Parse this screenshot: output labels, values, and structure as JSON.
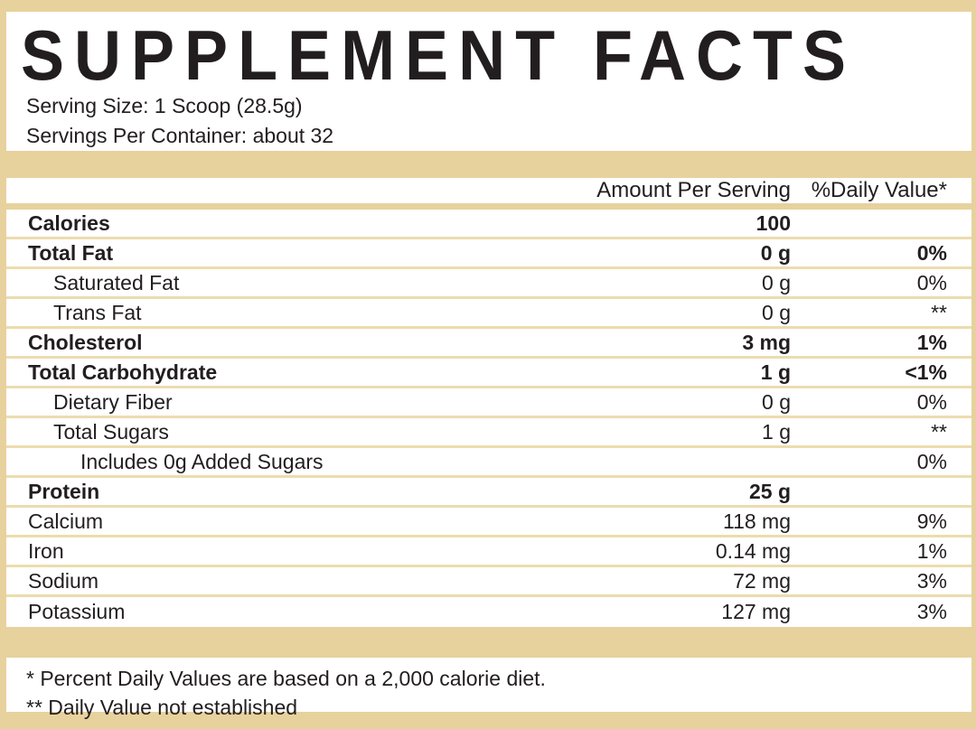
{
  "label": {
    "title": "SUPPLEMENT FACTS",
    "serving_size": "Serving Size: 1 Scoop (28.5g)",
    "servings_per_container": "Servings Per Container: about 32"
  },
  "table": {
    "header": {
      "amount": "Amount Per Serving",
      "daily_value": "%Daily Value*"
    },
    "rows": [
      {
        "label": "Calories",
        "amount": "100",
        "daily_value": "",
        "bold": true,
        "indent": 0
      },
      {
        "label": "Total Fat",
        "amount": "0 g",
        "daily_value": "0%",
        "bold": true,
        "indent": 0
      },
      {
        "label": "Saturated Fat",
        "amount": "0 g",
        "daily_value": "0%",
        "bold": false,
        "indent": 1
      },
      {
        "label": "Trans Fat",
        "amount": "0 g",
        "daily_value": "**",
        "bold": false,
        "indent": 1
      },
      {
        "label": "Cholesterol",
        "amount": "3 mg",
        "daily_value": "1%",
        "bold": true,
        "indent": 0
      },
      {
        "label": "Total Carbohydrate",
        "amount": "1 g",
        "daily_value": "<1%",
        "bold": true,
        "indent": 0
      },
      {
        "label": "Dietary Fiber",
        "amount": "0 g",
        "daily_value": "0%",
        "bold": false,
        "indent": 1
      },
      {
        "label": "Total Sugars",
        "amount": "1 g",
        "daily_value": "**",
        "bold": false,
        "indent": 1
      },
      {
        "label": "Includes 0g Added Sugars",
        "amount": "",
        "daily_value": "0%",
        "bold": false,
        "indent": 2
      },
      {
        "label": "Protein",
        "amount": "25 g",
        "daily_value": "",
        "bold": true,
        "indent": 0
      },
      {
        "label": "Calcium",
        "amount": "118 mg",
        "daily_value": "9%",
        "bold": false,
        "indent": 0
      },
      {
        "label": "Iron",
        "amount": "0.14 mg",
        "daily_value": "1%",
        "bold": false,
        "indent": 0
      },
      {
        "label": "Sodium",
        "amount": "72 mg",
        "daily_value": "3%",
        "bold": false,
        "indent": 0
      },
      {
        "label": "Potassium",
        "amount": "127 mg",
        "daily_value": "3%",
        "bold": false,
        "indent": 0
      }
    ]
  },
  "footnotes": {
    "daily_values": "* Percent Daily Values are based on a 2,000 calorie diet.",
    "not_established": "** Daily Value not established"
  },
  "colors": {
    "band": "#e7d29d",
    "divider": "#ecdcae",
    "text": "#221e20",
    "background": "#ffffff"
  }
}
